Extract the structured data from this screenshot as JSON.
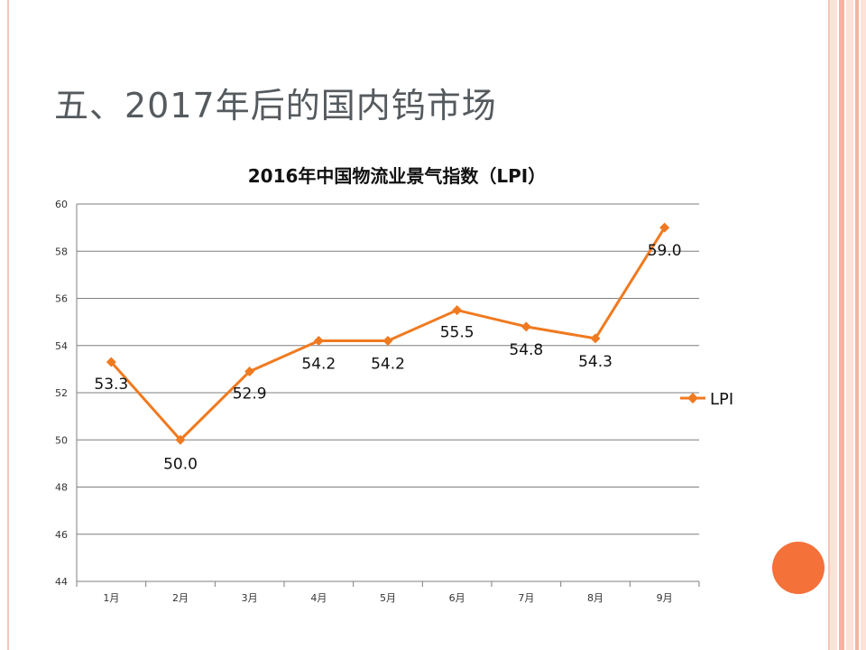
{
  "slide": {
    "title": "五、2017年后的国内钨市场"
  },
  "theme": {
    "accent": "#f07a20",
    "frame": "#f3c7b8",
    "stripe_light": "#fce2d8",
    "stripe_mid": "#f5b5a0",
    "circle": "#f4713a",
    "grid": "#7f7f7f"
  },
  "chart_data": {
    "type": "line",
    "title": "2016年中国物流业景气指数（LPI）",
    "categories": [
      "1月",
      "2月",
      "3月",
      "4月",
      "5月",
      "6月",
      "7月",
      "8月",
      "9月"
    ],
    "series": [
      {
        "name": "LPI",
        "values": [
          53.3,
          50.0,
          52.9,
          54.2,
          54.2,
          55.5,
          54.8,
          54.3,
          59.0
        ]
      }
    ],
    "data_labels": [
      "53.3",
      "50.0",
      "52.9",
      "54.2",
      "54.2",
      "55.5",
      "54.8",
      "54.3",
      "59.0"
    ],
    "ylim": [
      44,
      60
    ],
    "yticks": [
      44,
      46,
      48,
      50,
      52,
      54,
      56,
      58,
      60
    ],
    "grid": true,
    "legend": "right",
    "xlabel": "",
    "ylabel": ""
  }
}
